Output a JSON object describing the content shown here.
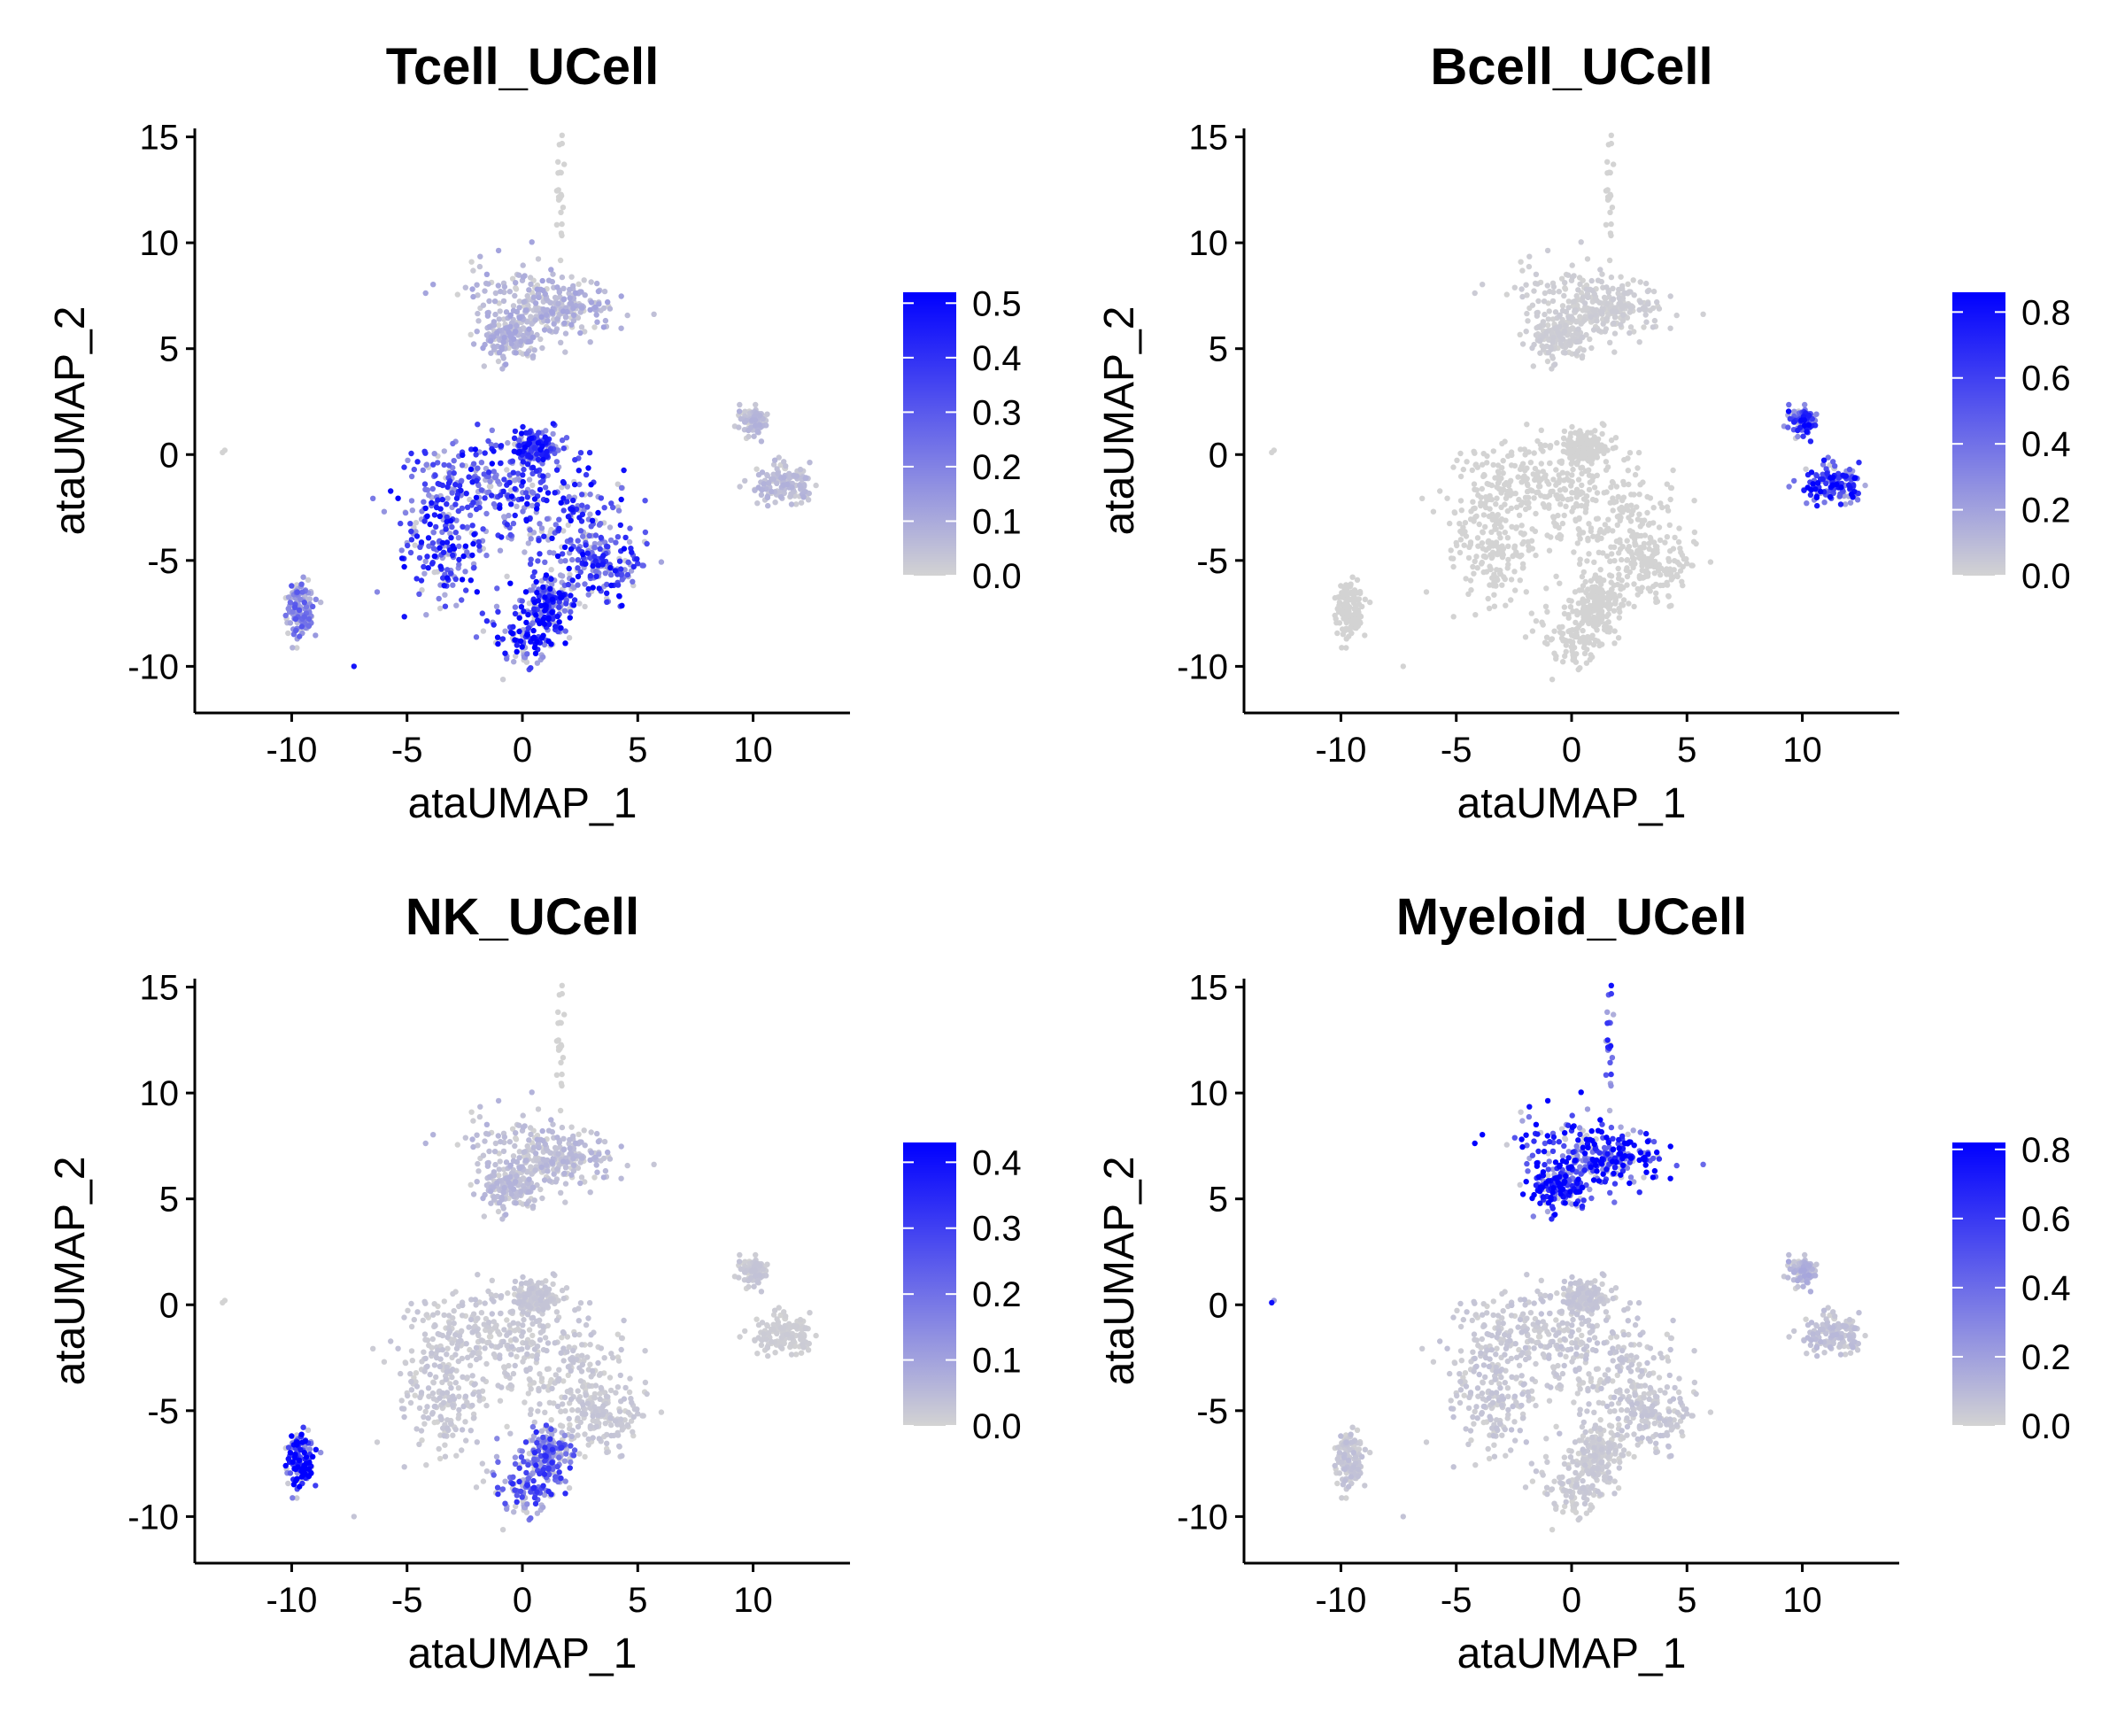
{
  "colors": {
    "low": "#d3d3d3",
    "high": "#0000ff",
    "axis": "#000000",
    "background": "#ffffff"
  },
  "chart_data": [
    {
      "type": "scatter",
      "title": "Tcell_UCell",
      "xlabel": "ataUMAP_1",
      "ylabel": "ataUMAP_2",
      "xlim": [
        -14.2,
        14.2
      ],
      "ylim": [
        -12.2,
        15.4
      ],
      "xticks": [
        -10,
        -5,
        0,
        5,
        10
      ],
      "yticks": [
        -10,
        -5,
        0,
        5,
        10,
        15
      ],
      "legend": {
        "position": "right",
        "max": 0.52,
        "ticks": [
          0.0,
          0.1,
          0.2,
          0.3,
          0.4,
          0.5
        ],
        "tick_labels": [
          "0.0",
          "0.1",
          "0.2",
          "0.3",
          "0.4",
          "0.5"
        ]
      },
      "cluster_scores": {
        "myeloid": 0.07,
        "tcell_main": 0.3,
        "tcell_lower": 0.36,
        "bcell_upper": 0.05,
        "bcell_lower": 0.05,
        "nk": 0.18,
        "stem": 0.0
      }
    },
    {
      "type": "scatter",
      "title": "Bcell_UCell",
      "xlabel": "ataUMAP_1",
      "ylabel": "ataUMAP_2",
      "xlim": [
        -14.2,
        14.2
      ],
      "ylim": [
        -12.2,
        15.4
      ],
      "xticks": [
        -10,
        -5,
        0,
        5,
        10
      ],
      "yticks": [
        -10,
        -5,
        0,
        5,
        10,
        15
      ],
      "legend": {
        "position": "right",
        "max": 0.86,
        "ticks": [
          0.0,
          0.2,
          0.4,
          0.6,
          0.8
        ],
        "tick_labels": [
          "0.0",
          "0.2",
          "0.4",
          "0.6",
          "0.8"
        ]
      },
      "cluster_scores": {
        "myeloid": 0.02,
        "tcell_main": 0.0,
        "tcell_lower": 0.0,
        "bcell_upper": 0.5,
        "bcell_lower": 0.55,
        "nk": 0.0,
        "stem": 0.0
      }
    },
    {
      "type": "scatter",
      "title": "NK_UCell",
      "xlabel": "ataUMAP_1",
      "ylabel": "ataUMAP_2",
      "xlim": [
        -14.2,
        14.2
      ],
      "ylim": [
        -12.2,
        15.4
      ],
      "xticks": [
        -10,
        -5,
        0,
        5,
        10
      ],
      "yticks": [
        -10,
        -5,
        0,
        5,
        10,
        15
      ],
      "legend": {
        "position": "right",
        "max": 0.43,
        "ticks": [
          0.0,
          0.1,
          0.2,
          0.3,
          0.4
        ],
        "tick_labels": [
          "0.0",
          "0.1",
          "0.2",
          "0.3",
          "0.4"
        ]
      },
      "cluster_scores": {
        "myeloid": 0.04,
        "tcell_main": 0.02,
        "tcell_lower": 0.2,
        "bcell_upper": 0.02,
        "bcell_lower": 0.01,
        "nk": 0.38,
        "stem": 0.0
      }
    },
    {
      "type": "scatter",
      "title": "Myeloid_UCell",
      "xlabel": "ataUMAP_1",
      "ylabel": "ataUMAP_2",
      "xlim": [
        -14.2,
        14.2
      ],
      "ylim": [
        -12.2,
        15.4
      ],
      "xticks": [
        -10,
        -5,
        0,
        5,
        10
      ],
      "yticks": [
        -10,
        -5,
        0,
        5,
        10,
        15
      ],
      "legend": {
        "position": "right",
        "max": 0.82,
        "ticks": [
          0.0,
          0.2,
          0.4,
          0.6,
          0.8
        ],
        "tick_labels": [
          "0.0",
          "0.2",
          "0.4",
          "0.6",
          "0.8"
        ]
      },
      "cluster_scores": {
        "myeloid": 0.62,
        "tcell_main": 0.04,
        "tcell_lower": 0.03,
        "bcell_upper": 0.1,
        "bcell_lower": 0.06,
        "nk": 0.05,
        "stem": 0.45
      }
    }
  ]
}
